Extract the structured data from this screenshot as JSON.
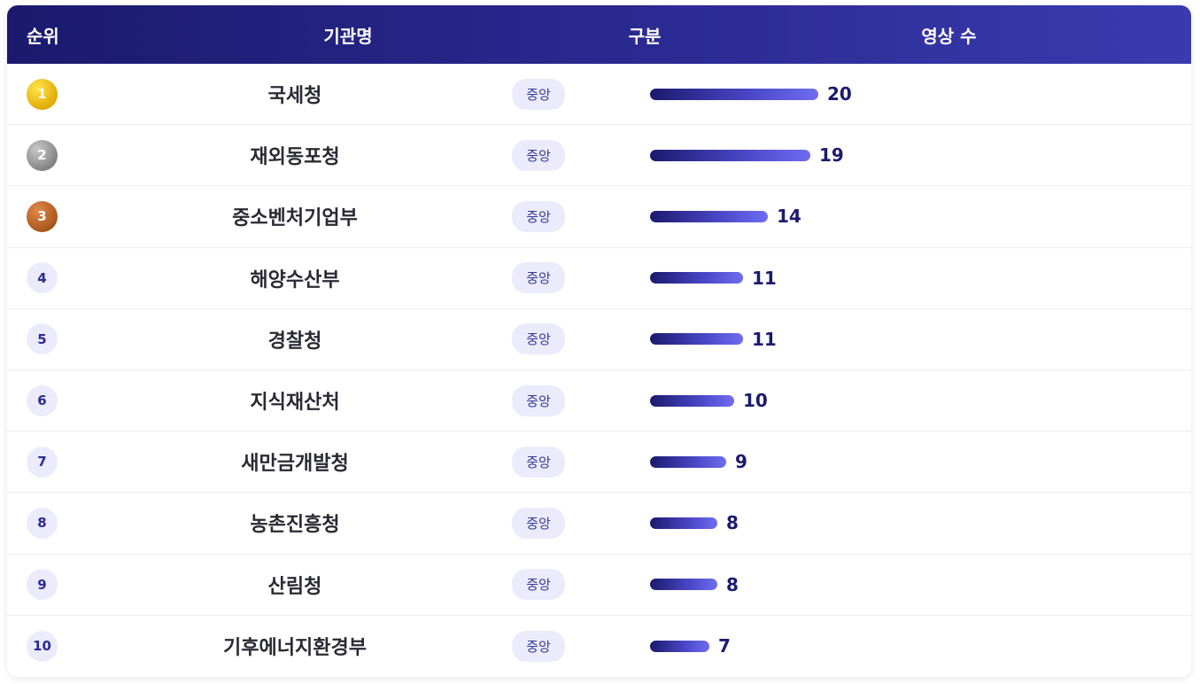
{
  "header": {
    "rank": "순위",
    "name": "기관명",
    "category": "구분",
    "count": "영상 수"
  },
  "max_count": 20,
  "rows": [
    {
      "rank": "1",
      "medal": "gold",
      "name": "국세청",
      "category": "중앙",
      "count": 20
    },
    {
      "rank": "2",
      "medal": "silver",
      "name": "재외동포청",
      "category": "중앙",
      "count": 19
    },
    {
      "rank": "3",
      "medal": "bronze",
      "name": "중소벤처기업부",
      "category": "중앙",
      "count": 14
    },
    {
      "rank": "4",
      "medal": "plain",
      "name": "해양수산부",
      "category": "중앙",
      "count": 11
    },
    {
      "rank": "5",
      "medal": "plain",
      "name": "경찰청",
      "category": "중앙",
      "count": 11
    },
    {
      "rank": "6",
      "medal": "plain",
      "name": "지식재산처",
      "category": "중앙",
      "count": 10
    },
    {
      "rank": "7",
      "medal": "plain",
      "name": "새만금개발청",
      "category": "중앙",
      "count": 9
    },
    {
      "rank": "8",
      "medal": "plain",
      "name": "농촌진흥청",
      "category": "중앙",
      "count": 8
    },
    {
      "rank": "9",
      "medal": "plain",
      "name": "산림청",
      "category": "중앙",
      "count": 8
    },
    {
      "rank": "10",
      "medal": "plain",
      "name": "기후에너지환경부",
      "category": "중앙",
      "count": 7
    }
  ]
}
